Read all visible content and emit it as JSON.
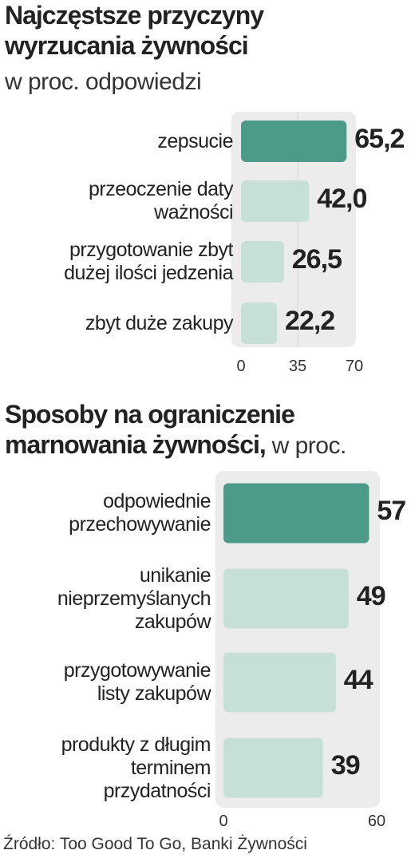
{
  "chart_data": [
    {
      "type": "bar",
      "title": "Najczęstsze przyczyny\nwyrzucania żywności",
      "subtitle": "w proc. odpowiedzi",
      "categories": [
        "zepsucie",
        "przeoczenie daty\nważności",
        "przygotowanie zbyt\ndużej ilości jedzenia",
        "zbyt duże zakupy"
      ],
      "values": [
        65.2,
        42.0,
        26.5,
        22.2
      ],
      "value_labels": [
        "65,2",
        "42,0",
        "26,5",
        "22,2"
      ],
      "colors": [
        "#4c9a8a",
        "#c6e0d8",
        "#c6e0d8",
        "#c6e0d8"
      ],
      "xlim": [
        0,
        70
      ],
      "xticks": [
        0,
        35,
        70
      ],
      "grid": true
    },
    {
      "type": "bar",
      "title": "Sposoby na ograniczenie\nmarnowania żywności,",
      "subtitle": "w proc.",
      "categories": [
        "odpowiednie\nprzechowywanie",
        "unikanie\nnieprzemyślanych\nzakupów",
        "przygotowywanie\nlisty zakupów",
        "produkty z długim\nterminem\nprzydatności"
      ],
      "values": [
        57,
        49,
        44,
        39
      ],
      "colors": [
        "#4c9a8a",
        "#c6e0d8",
        "#c6e0d8",
        "#c6e0d8"
      ],
      "xlim": [
        0,
        60
      ],
      "xticks": [
        0,
        60
      ],
      "grid": false
    }
  ],
  "source": "Źródło: Too Good To Go, Banki Żywności"
}
